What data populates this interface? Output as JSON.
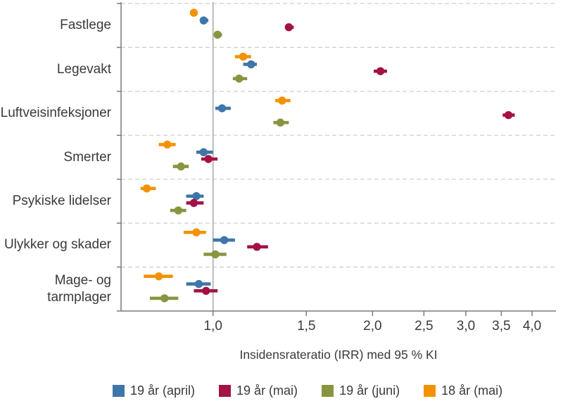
{
  "chart_data": {
    "type": "scatter",
    "variant": "forest-plot-with-95ci",
    "x_scale": "log",
    "xlabel": "Insidensrateratio (IRR) med 95 % KI",
    "xlim": [
      0.67,
      4.45
    ],
    "reference_line": 1.0,
    "grid": "dashed-horizontal-category-separators",
    "legend_position": "bottom",
    "x_ticks": [
      {
        "value": 1.0,
        "label": "1,0"
      },
      {
        "value": 1.5,
        "label": "1,5"
      },
      {
        "value": 2.0,
        "label": "2,0"
      },
      {
        "value": 2.5,
        "label": "2,5"
      },
      {
        "value": 3.0,
        "label": "3,0"
      },
      {
        "value": 3.5,
        "label": "3,5"
      },
      {
        "value": 4.0,
        "label": "4,0"
      }
    ],
    "categories": [
      "Fastlege",
      "Legevakt",
      "Luftveisinfeksjoner",
      "Smerter",
      "Psykiske lidelser",
      "Ulykker og skader",
      "Mage- og tarmplager"
    ],
    "category_display": [
      "Fastlege",
      "Legevakt",
      "Luftveisinfeksjoner",
      "Smerter",
      "Psykiske lidelser",
      "Ulykker og skader",
      "Mage- og\ntarmplager"
    ],
    "series": [
      {
        "name": "19 år (april)",
        "color": "#3D76A8",
        "row_frac": 0.385,
        "values": [
          {
            "irr": 0.96,
            "lo": 0.95,
            "hi": 0.98
          },
          {
            "irr": 1.18,
            "lo": 1.14,
            "hi": 1.21
          },
          {
            "irr": 1.04,
            "lo": 1.01,
            "hi": 1.08
          },
          {
            "irr": 0.96,
            "lo": 0.93,
            "hi": 1.0
          },
          {
            "irr": 0.93,
            "lo": 0.89,
            "hi": 0.96
          },
          {
            "irr": 1.05,
            "lo": 1.0,
            "hi": 1.1
          },
          {
            "irr": 0.94,
            "lo": 0.89,
            "hi": 0.99
          }
        ]
      },
      {
        "name": "19 år (mai)",
        "color": "#A31245",
        "row_frac": 0.54,
        "values": [
          {
            "irr": 1.39,
            "lo": 1.37,
            "hi": 1.42
          },
          {
            "irr": 2.07,
            "lo": 2.01,
            "hi": 2.13
          },
          {
            "irr": 3.61,
            "lo": 3.52,
            "hi": 3.71
          },
          {
            "irr": 0.98,
            "lo": 0.95,
            "hi": 1.02
          },
          {
            "irr": 0.92,
            "lo": 0.89,
            "hi": 0.96
          },
          {
            "irr": 1.21,
            "lo": 1.16,
            "hi": 1.27
          },
          {
            "irr": 0.97,
            "lo": 0.92,
            "hi": 1.02
          }
        ]
      },
      {
        "name": "19 år (juni)",
        "color": "#8A9440",
        "row_frac": 0.71,
        "values": [
          {
            "irr": 1.02,
            "lo": 1.01,
            "hi": 1.04
          },
          {
            "irr": 1.12,
            "lo": 1.09,
            "hi": 1.16
          },
          {
            "irr": 1.34,
            "lo": 1.3,
            "hi": 1.39
          },
          {
            "irr": 0.87,
            "lo": 0.84,
            "hi": 0.9
          },
          {
            "irr": 0.86,
            "lo": 0.83,
            "hi": 0.89
          },
          {
            "irr": 1.01,
            "lo": 0.96,
            "hi": 1.06
          },
          {
            "irr": 0.81,
            "lo": 0.76,
            "hi": 0.86
          }
        ]
      },
      {
        "name": "18 år (mai)",
        "color": "#F39200",
        "row_frac": 0.21,
        "values": [
          {
            "irr": 0.92,
            "lo": 0.91,
            "hi": 0.93
          },
          {
            "irr": 1.14,
            "lo": 1.1,
            "hi": 1.18
          },
          {
            "irr": 1.35,
            "lo": 1.31,
            "hi": 1.4
          },
          {
            "irr": 0.82,
            "lo": 0.79,
            "hi": 0.85
          },
          {
            "irr": 0.75,
            "lo": 0.73,
            "hi": 0.78
          },
          {
            "irr": 0.93,
            "lo": 0.88,
            "hi": 0.97
          },
          {
            "irr": 0.79,
            "lo": 0.74,
            "hi": 0.84
          }
        ]
      }
    ]
  }
}
